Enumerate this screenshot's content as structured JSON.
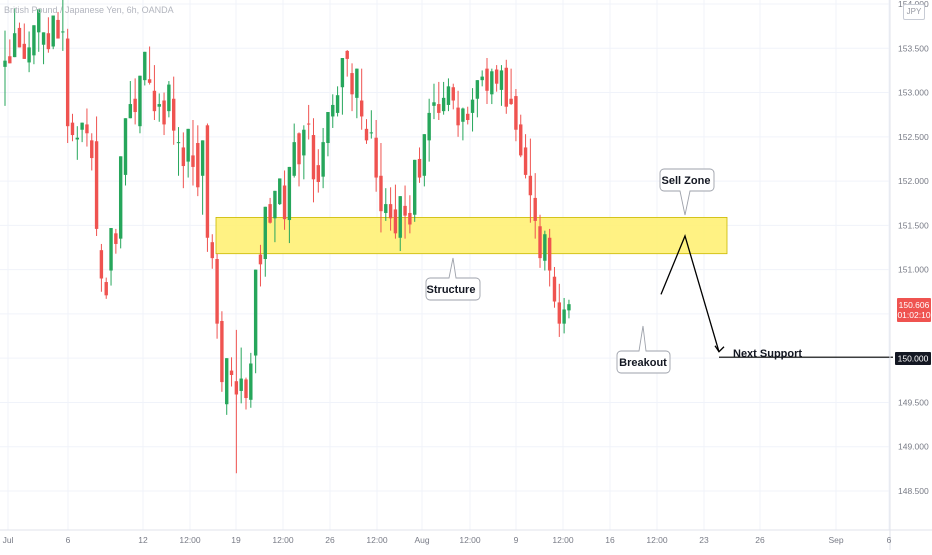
{
  "header": {
    "symbol_line": "British Pound / Japanese Yen, 6h, OANDA",
    "currency": "JPY"
  },
  "colors": {
    "up": "#26a65b",
    "down": "#ef5350",
    "zone": "#fff176",
    "grid": "#f0f3fa",
    "axis_text": "#787b86"
  },
  "price_tags": {
    "current_price": "150.606",
    "countdown": "01:02:10",
    "support_price": "150.000"
  },
  "annotations": {
    "sell_zone": "Sell Zone",
    "structure": "Structure",
    "breakout": "Breakout",
    "next_support": "Next Support"
  },
  "chart_data": {
    "type": "candlestick",
    "title": "British Pound / Japanese Yen, 6h, OANDA",
    "y_axis": {
      "ticks": [
        "148.500",
        "149.000",
        "149.500",
        "150.000",
        "150.500",
        "151.000",
        "151.500",
        "152.000",
        "152.500",
        "153.000",
        "153.500",
        "154.000"
      ],
      "range": [
        148.4,
        154.05
      ]
    },
    "x_axis": {
      "ticks": [
        "Jul",
        "6",
        "12",
        "12:00",
        "19",
        "12:00",
        "26",
        "12:00",
        "Aug",
        "12:00",
        "9",
        "12:00",
        "16",
        "12:00",
        "23",
        "26",
        "Sep",
        "6"
      ]
    },
    "zone": {
      "label": "Sell Zone",
      "low": 151.18,
      "high": 151.59
    },
    "support_level": 150.0,
    "projection": [
      {
        "bar": 150.62,
        "price": 150.72
      },
      {
        "bar": 151.38,
        "price": 151.38
      },
      {
        "bar": 150.05,
        "price": 150.05
      }
    ],
    "candles": [
      [
        153.29,
        153.7,
        153.36,
        152.85
      ],
      [
        153.41,
        153.6,
        153.33,
        153.61
      ],
      [
        153.4,
        153.95,
        153.67,
        153.65
      ],
      [
        153.73,
        153.79,
        153.51,
        153.76
      ],
      [
        153.55,
        153.78,
        153.38,
        153.85
      ],
      [
        153.34,
        153.69,
        153.51,
        153.23
      ],
      [
        153.42,
        153.69,
        153.76,
        153.32
      ],
      [
        153.68,
        153.75,
        153.94,
        153.46
      ],
      [
        153.54,
        153.61,
        153.68,
        153.32
      ],
      [
        153.67,
        153.85,
        153.49,
        153.45
      ],
      [
        153.52,
        153.73,
        153.87,
        153.49
      ],
      [
        153.82,
        153.91,
        153.61,
        153.78
      ],
      [
        153.68,
        154.09,
        153.69,
        153.47
      ],
      [
        153.61,
        153.72,
        152.62,
        152.43
      ],
      [
        152.66,
        152.76,
        152.52,
        152.45
      ],
      [
        152.47,
        152.62,
        152.49,
        152.24
      ],
      [
        152.58,
        152.55,
        152.66,
        152.44
      ],
      [
        152.64,
        152.82,
        152.54,
        152.39
      ],
      [
        152.46,
        152.54,
        152.26,
        152.12
      ],
      [
        152.45,
        152.73,
        151.46,
        151.38
      ],
      [
        151.22,
        151.29,
        150.9,
        150.75
      ],
      [
        150.86,
        150.91,
        150.71,
        150.67
      ],
      [
        150.99,
        151.34,
        151.47,
        150.82
      ],
      [
        151.41,
        151.46,
        151.29,
        151.18
      ],
      [
        151.35,
        151.84,
        152.28,
        151.24
      ],
      [
        152.07,
        152.48,
        152.71,
        151.95
      ],
      [
        152.71,
        153.13,
        152.87,
        152.74
      ],
      [
        152.93,
        153.16,
        152.78,
        152.64
      ],
      [
        152.62,
        153.12,
        153.19,
        152.54
      ],
      [
        153.14,
        153.35,
        153.46,
        153.08
      ],
      [
        153.15,
        153.52,
        153.11,
        153.09
      ],
      [
        153.02,
        153.31,
        152.79,
        152.69
      ],
      [
        152.84,
        152.99,
        152.87,
        152.67
      ],
      [
        152.91,
        153.0,
        152.64,
        152.52
      ],
      [
        152.79,
        153.13,
        153.09,
        152.72
      ],
      [
        152.93,
        153.18,
        152.57,
        152.41
      ],
      [
        152.43,
        152.61,
        152.44,
        152.06
      ],
      [
        152.38,
        152.55,
        152.17,
        151.92
      ],
      [
        152.22,
        152.44,
        152.59,
        152.04
      ],
      [
        152.29,
        152.69,
        152.16,
        151.95
      ],
      [
        152.43,
        152.63,
        151.93,
        151.83
      ],
      [
        152.06,
        152.34,
        152.46,
        151.62
      ],
      [
        152.63,
        152.65,
        151.36,
        151.2
      ],
      [
        151.31,
        151.4,
        151.13,
        151.01
      ],
      [
        151.12,
        151.18,
        150.39,
        150.22
      ],
      [
        150.42,
        150.53,
        149.73,
        149.62
      ],
      [
        149.48,
        149.69,
        150.0,
        149.36
      ],
      [
        149.86,
        150.01,
        149.81,
        149.68
      ],
      [
        149.74,
        150.32,
        149.59,
        148.7
      ],
      [
        149.63,
        150.12,
        149.77,
        149.49
      ],
      [
        149.76,
        149.78,
        149.55,
        149.42
      ],
      [
        149.53,
        150.06,
        149.94,
        149.44
      ],
      [
        150.03,
        150.75,
        151.0,
        149.83
      ],
      [
        151.17,
        151.28,
        151.06,
        150.81
      ],
      [
        151.12,
        151.43,
        151.71,
        150.92
      ],
      [
        151.74,
        151.81,
        151.53,
        151.52
      ],
      [
        151.58,
        151.86,
        151.89,
        151.31
      ],
      [
        151.74,
        151.96,
        152.03,
        151.73
      ],
      [
        151.95,
        152.12,
        151.57,
        151.45
      ],
      [
        151.56,
        152.07,
        152.16,
        151.3
      ],
      [
        152.06,
        152.65,
        152.44,
        152.04
      ],
      [
        152.54,
        152.55,
        152.19,
        151.94
      ],
      [
        152.29,
        152.63,
        152.58,
        152.02
      ],
      [
        152.65,
        152.86,
        152.64,
        152.47
      ],
      [
        152.52,
        152.71,
        152.02,
        151.76
      ],
      [
        152.18,
        152.36,
        151.99,
        151.87
      ],
      [
        152.05,
        152.6,
        152.44,
        151.92
      ],
      [
        152.43,
        152.7,
        152.78,
        152.28
      ],
      [
        152.73,
        152.98,
        152.86,
        152.6
      ],
      [
        152.77,
        153.07,
        152.97,
        152.73
      ],
      [
        153.06,
        153.2,
        153.39,
        152.75
      ],
      [
        153.47,
        153.48,
        153.38,
        153.18
      ],
      [
        153.22,
        153.33,
        152.98,
        152.79
      ],
      [
        152.94,
        153.18,
        153.27,
        152.71
      ],
      [
        152.91,
        153.27,
        152.73,
        152.58
      ],
      [
        152.59,
        152.7,
        152.46,
        152.42
      ],
      [
        152.54,
        152.8,
        152.55,
        152.48
      ],
      [
        152.49,
        152.69,
        152.04,
        151.88
      ],
      [
        152.06,
        152.43,
        151.66,
        151.42
      ],
      [
        151.64,
        151.92,
        151.74,
        151.55
      ],
      [
        151.74,
        151.93,
        151.58,
        151.44
      ],
      [
        151.68,
        151.96,
        151.41,
        151.35
      ],
      [
        151.36,
        151.63,
        151.83,
        151.21
      ],
      [
        151.72,
        151.95,
        151.61,
        151.35
      ],
      [
        151.64,
        151.84,
        151.51,
        151.41
      ],
      [
        151.62,
        152.09,
        152.24,
        151.54
      ],
      [
        152.25,
        152.38,
        152.04,
        151.98
      ],
      [
        152.06,
        152.34,
        152.53,
        151.94
      ],
      [
        152.46,
        152.93,
        152.77,
        152.22
      ],
      [
        152.85,
        153.1,
        152.89,
        152.7
      ],
      [
        152.87,
        153.12,
        152.77,
        152.69
      ],
      [
        152.79,
        153.12,
        152.94,
        152.75
      ],
      [
        152.86,
        153.16,
        153.07,
        152.79
      ],
      [
        153.06,
        153.1,
        152.91,
        152.81
      ],
      [
        152.83,
        153.02,
        152.63,
        152.5
      ],
      [
        152.67,
        152.83,
        152.82,
        152.46
      ],
      [
        152.76,
        152.84,
        152.69,
        152.64
      ],
      [
        152.77,
        153.05,
        152.92,
        152.56
      ],
      [
        152.93,
        153.1,
        153.14,
        152.72
      ],
      [
        153.14,
        153.25,
        153.18,
        153.07
      ],
      [
        153.27,
        153.39,
        153.02,
        152.87
      ],
      [
        152.98,
        153.27,
        153.24,
        152.87
      ],
      [
        153.26,
        153.31,
        153.1,
        153.01
      ],
      [
        153.03,
        153.31,
        153.25,
        152.85
      ],
      [
        153.28,
        153.37,
        152.84,
        152.76
      ],
      [
        152.93,
        153.27,
        152.87,
        152.86
      ],
      [
        152.96,
        153.04,
        152.58,
        152.45
      ],
      [
        152.64,
        152.75,
        152.29,
        152.27
      ],
      [
        152.38,
        152.53,
        152.07,
        152.03
      ],
      [
        152.06,
        152.48,
        151.84,
        151.53
      ],
      [
        151.81,
        152.09,
        151.55,
        151.35
      ],
      [
        151.49,
        151.62,
        151.13,
        151.02
      ],
      [
        151.1,
        151.44,
        151.4,
        150.99
      ],
      [
        151.36,
        151.46,
        150.99,
        150.81
      ],
      [
        150.92,
        151.03,
        150.64,
        150.57
      ],
      [
        150.63,
        150.84,
        150.39,
        150.24
      ],
      [
        150.39,
        150.68,
        150.55,
        150.28
      ],
      [
        150.54,
        150.66,
        150.61,
        150.45
      ]
    ]
  }
}
